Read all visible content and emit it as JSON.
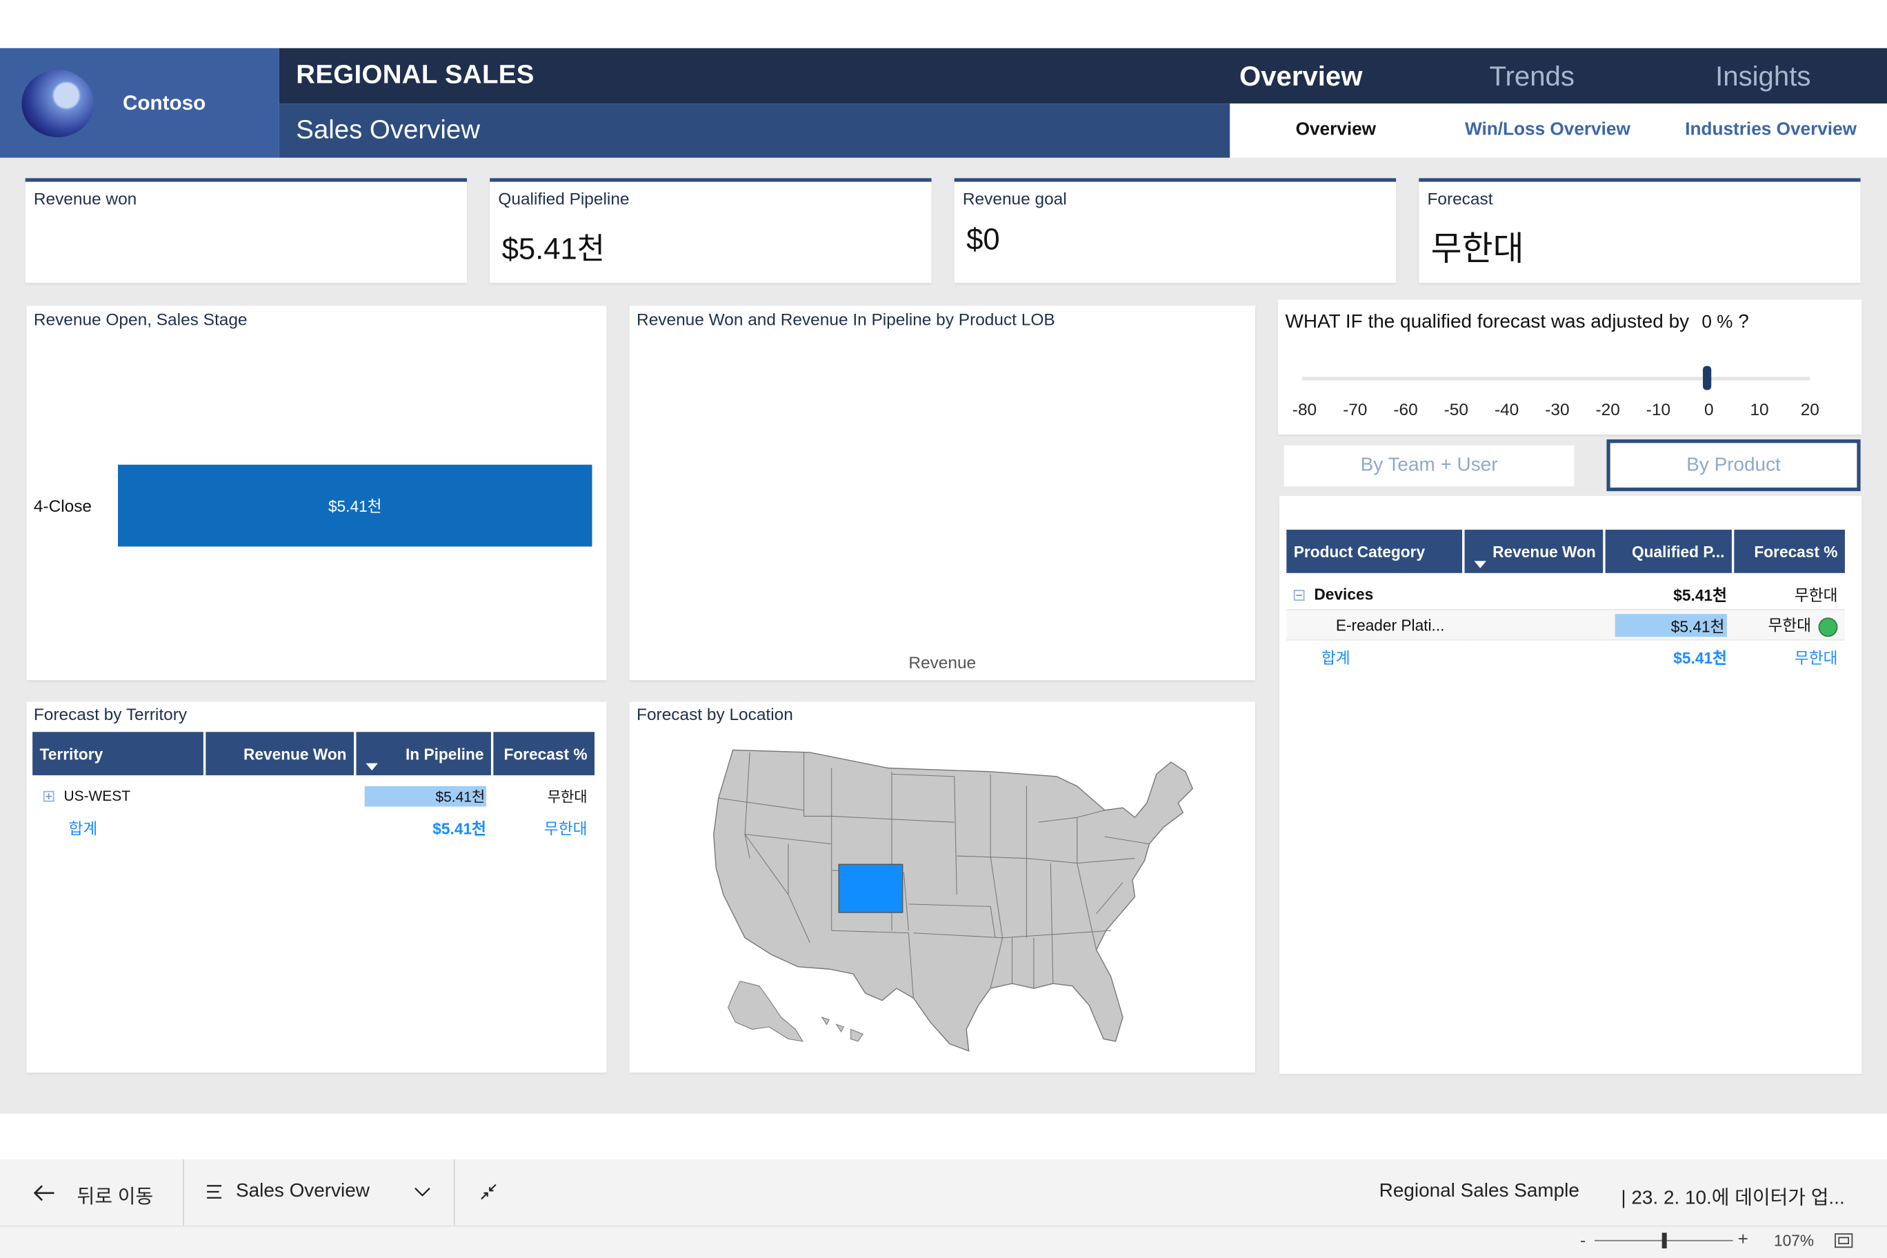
{
  "header": {
    "brand": "Contoso",
    "report_title": "REGIONAL SALES",
    "page_subtitle": "Sales Overview",
    "main_tabs": [
      {
        "label": "Overview",
        "active": true
      },
      {
        "label": "Trends",
        "active": false
      },
      {
        "label": "Insights",
        "active": false
      }
    ],
    "sub_tabs": [
      {
        "label": "Overview",
        "active": true
      },
      {
        "label": "Win/Loss Overview",
        "active": false
      },
      {
        "label": "Industries Overview",
        "active": false
      }
    ]
  },
  "kpis": [
    {
      "title": "Revenue won",
      "value": ""
    },
    {
      "title": "Qualified Pipeline",
      "value": "$5.41천"
    },
    {
      "title": "Revenue goal",
      "value": "$0"
    },
    {
      "title": "Forecast",
      "value": "무한대"
    }
  ],
  "revenue_open_chart": {
    "title": "Revenue Open, Sales Stage",
    "chart_data": {
      "type": "bar",
      "orientation": "horizontal",
      "categories": [
        "4-Close"
      ],
      "values": [
        5410
      ],
      "data_labels": [
        "$5.41천"
      ],
      "color": "#0f6cbd"
    }
  },
  "lob_chart": {
    "title": "Revenue Won and Revenue In Pipeline by Product LOB",
    "legend_label": "Revenue"
  },
  "what_if": {
    "prefix": "WHAT IF the qualified forecast was adjusted by",
    "value": "0 %",
    "suffix": "?",
    "ticks": [
      "-80",
      "-70",
      "-60",
      "-50",
      "-40",
      "-30",
      "-20",
      "-10",
      "0",
      "10",
      "20"
    ],
    "min": -80,
    "max": 20,
    "current": 0
  },
  "toggles": {
    "by_team": "By Team + User",
    "by_product": "By Product",
    "selected": "By Product"
  },
  "product_table": {
    "columns": [
      "Product Category",
      "Revenue Won",
      "Qualified P...",
      "Forecast %"
    ],
    "group": {
      "name": "Devices",
      "revenue_won": "",
      "qualified": "$5.41천",
      "forecast": "무한대"
    },
    "row": {
      "name": "E-reader Plati...",
      "revenue_won": "",
      "qualified": "$5.41천",
      "forecast": "무한대",
      "status_color": "#3cb85c"
    },
    "total": {
      "name": "합계",
      "revenue_won": "",
      "qualified": "$5.41천",
      "forecast": "무한대"
    }
  },
  "territory_table": {
    "title": "Forecast by Territory",
    "columns": [
      "Territory",
      "Revenue Won",
      "In Pipeline",
      "Forecast %"
    ],
    "row": {
      "name": "US-WEST",
      "revenue_won": "",
      "in_pipeline": "$5.41천",
      "forecast": "무한대"
    },
    "total": {
      "name": "합계",
      "revenue_won": "",
      "in_pipeline": "$5.41천",
      "forecast": "무한대"
    }
  },
  "location_map": {
    "title": "Forecast by Location",
    "highlighted_state": "Colorado",
    "highlight_color": "#118dff",
    "base_color": "#c8c8c8"
  },
  "footer": {
    "back_label": "뒤로 이동",
    "page_selector": "Sales Overview",
    "report_name": "Regional Sales Sample",
    "data_updated": "| 23. 2. 10.에 데이터가 업...",
    "zoom": "107%"
  },
  "icons": {
    "back": "arrow-left-icon",
    "pages": "list-icon",
    "chevron": "chevron-down-icon",
    "collapse": "collapse-icon",
    "fit": "fit-to-page-icon"
  }
}
